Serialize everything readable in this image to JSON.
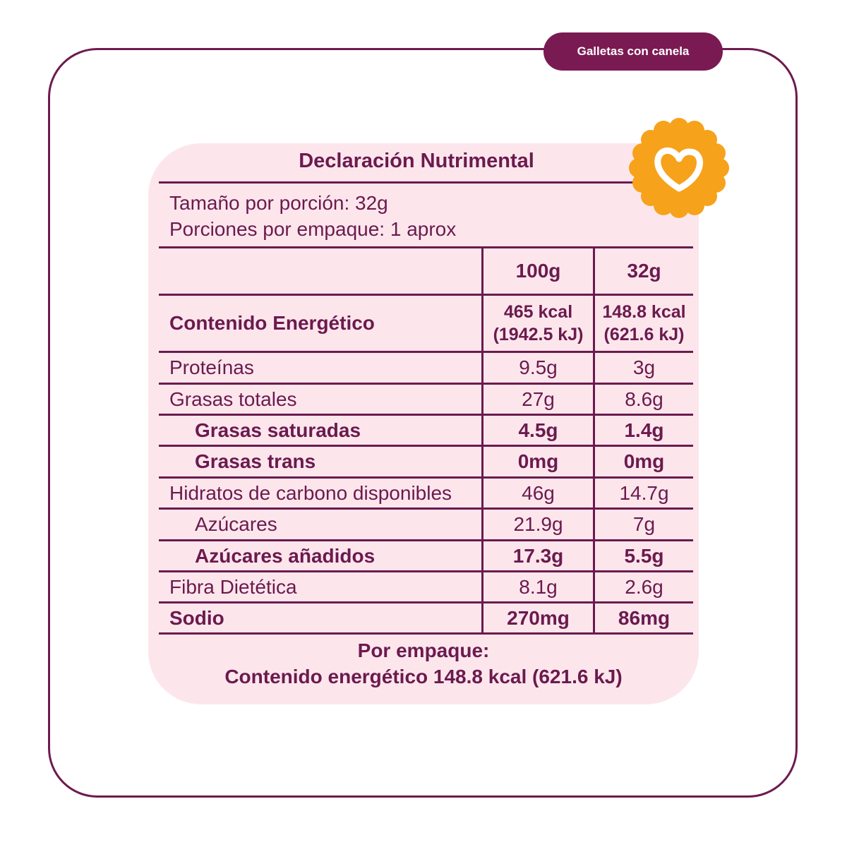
{
  "product_tag": "Galletas con canela",
  "title": "Declaración Nutrimental",
  "serving": {
    "size": "Tamaño por porción: 32g",
    "per_package": "Porciones por empaque: 1 aprox"
  },
  "columns": [
    "100g",
    "32g"
  ],
  "energy": {
    "label": "Contenido Energético",
    "per100": [
      "465 kcal",
      "(1942.5 kJ)"
    ],
    "per_portion": [
      "148.8 kcal",
      "(621.6 kJ)"
    ]
  },
  "rows": [
    {
      "label": "Proteínas",
      "v1": "9.5g",
      "v2": "3g"
    },
    {
      "label": "Grasas totales",
      "v1": "27g",
      "v2": "8.6g"
    },
    {
      "label": "Grasas saturadas",
      "v1": "4.5g",
      "v2": "1.4g"
    },
    {
      "label": "Grasas trans",
      "v1": "0mg",
      "v2": "0mg"
    },
    {
      "label": "Hidratos de carbono disponibles",
      "v1": "46g",
      "v2": "14.7g"
    },
    {
      "label": "Azúcares",
      "v1": "21.9g",
      "v2": "7g"
    },
    {
      "label": "Azúcares añadidos",
      "v1": "17.3g",
      "v2": "5.5g"
    },
    {
      "label": "Fibra Dietética",
      "v1": "8.1g",
      "v2": "2.6g"
    },
    {
      "label": "Sodio",
      "v1": "270mg",
      "v2": "86mg"
    }
  ],
  "footer": {
    "line1": "Por empaque:",
    "line2": "Contenido energético 148.8 kcal (621.6 kJ)"
  },
  "colors": {
    "brand": "#7a1a52",
    "panel": "#fce6ec",
    "badge": "#f7a21b"
  },
  "icons": {
    "badge": "heart-badge-icon"
  }
}
